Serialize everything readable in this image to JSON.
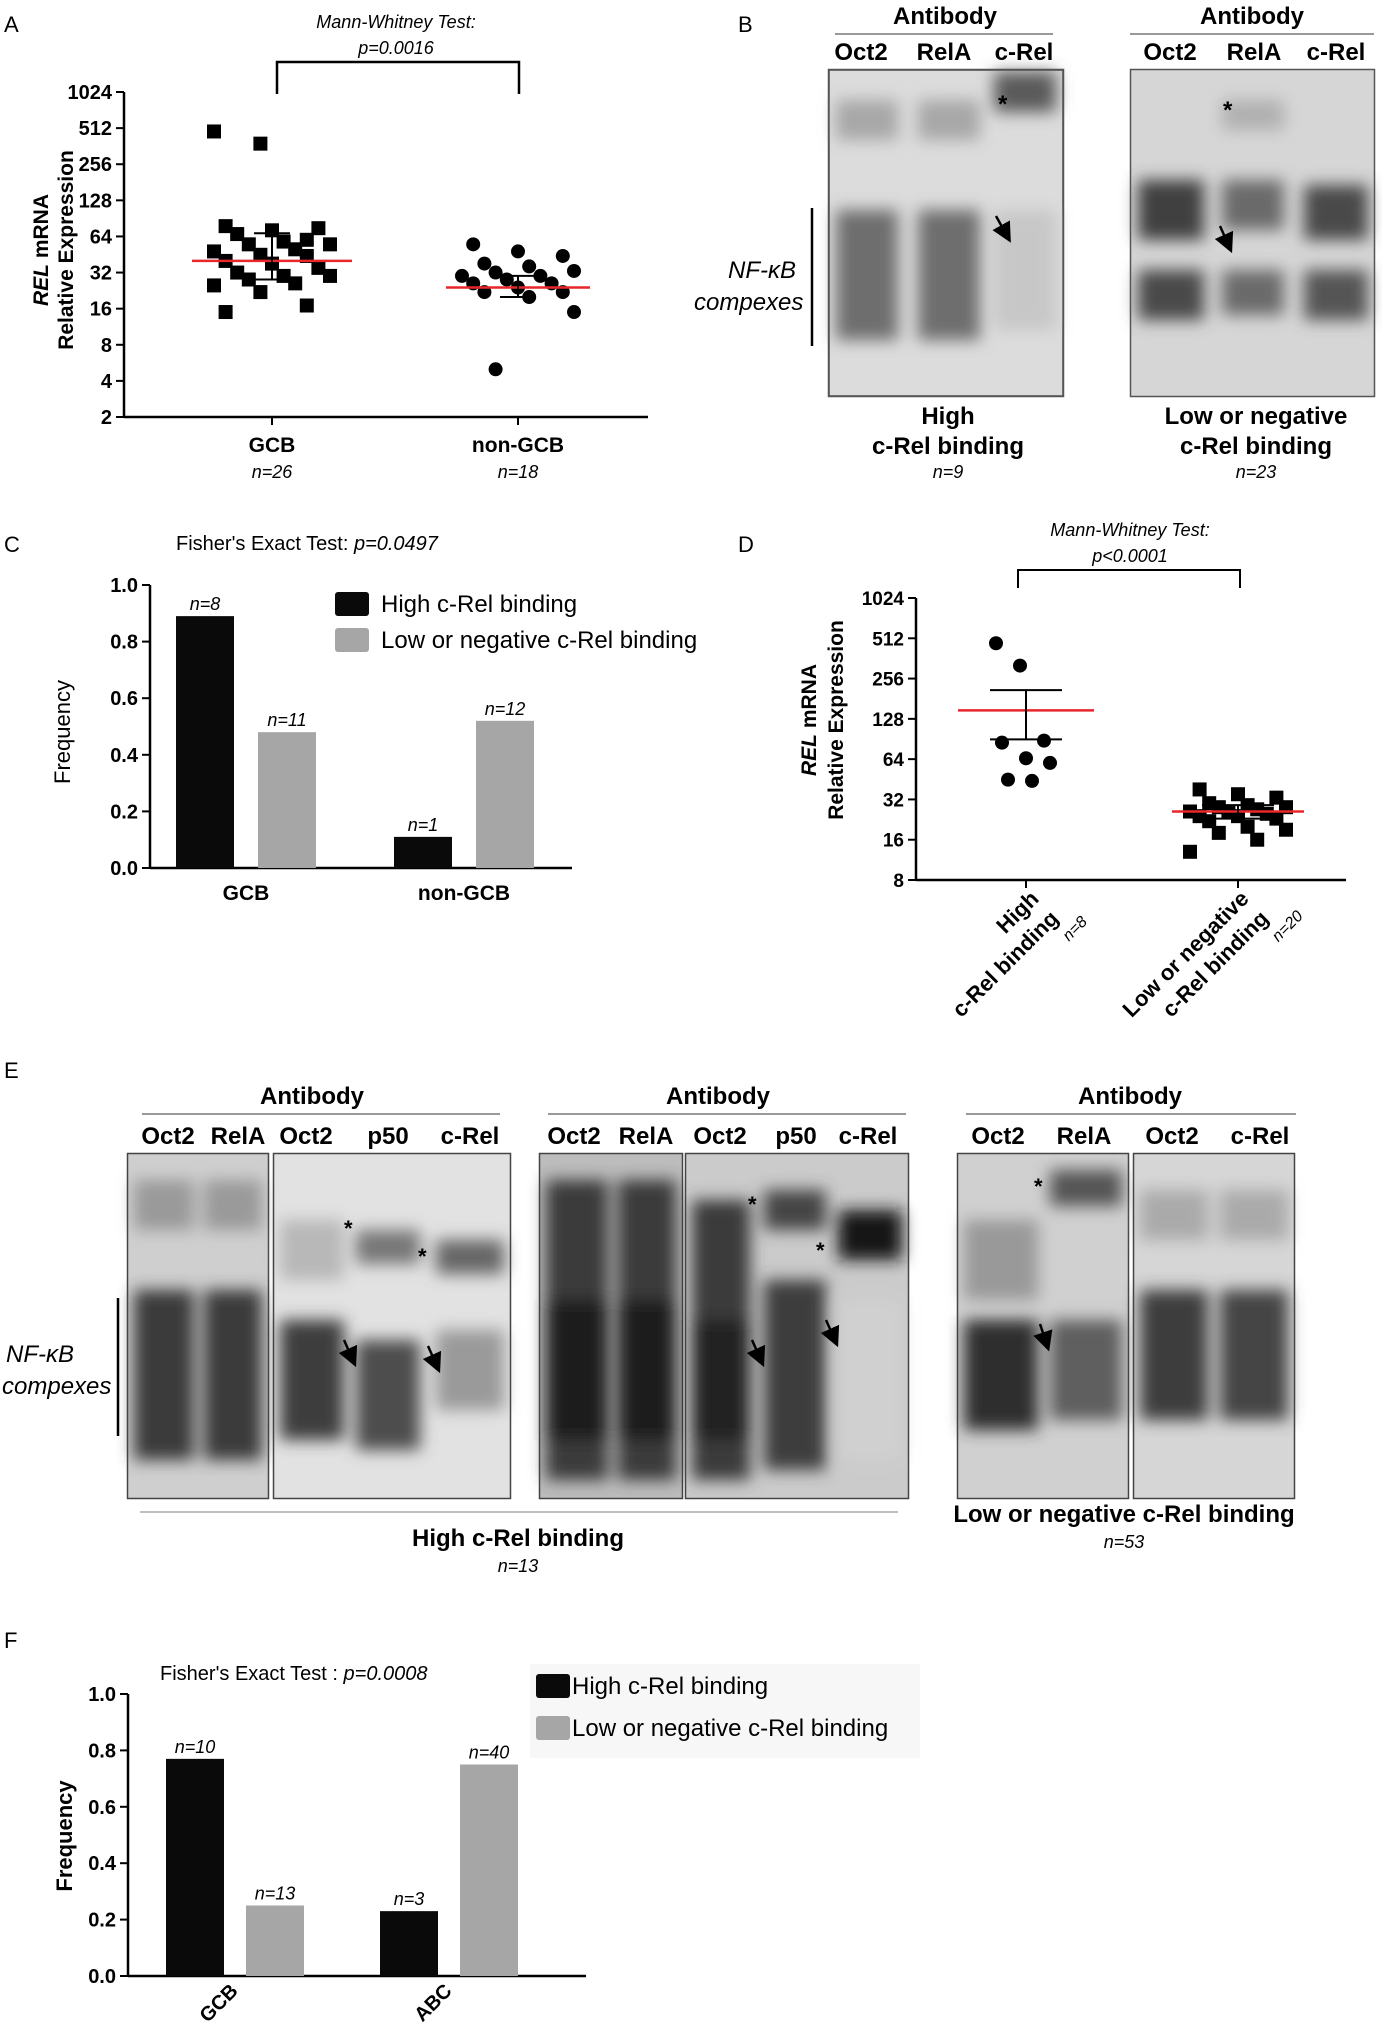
{
  "panels": {
    "A": {
      "letter": "A",
      "test_label": "Mann-Whitney Test:",
      "p_label": "p=0.0016",
      "ylabel_gene": "REL",
      "ylabel_rest": " mRNA",
      "ylabel_line2": "Relative Expression",
      "groups": [
        {
          "name": "GCB",
          "n": "n=26"
        },
        {
          "name": "non-GCB",
          "n": "n=18"
        }
      ]
    },
    "B": {
      "letter": "B",
      "antibody_label": "Antibody",
      "lanes": [
        "Oct2",
        "RelA",
        "c-Rel"
      ],
      "side_label_1": "NF-κB",
      "side_label_2": "compexes",
      "blots": [
        {
          "caption_1": "High",
          "caption_2": "c-Rel binding",
          "n": "n=9"
        },
        {
          "caption_1": "Low or negative",
          "caption_2": "c-Rel binding",
          "n": "n=23"
        }
      ],
      "star": "*"
    },
    "C": {
      "letter": "C",
      "test_prefix": "Fisher's Exact Test: ",
      "p_value": "p=0.0497",
      "ylabel": "Frequency"
    },
    "D": {
      "letter": "D",
      "test_label": "Mann-Whitney Test:",
      "p_label": "p<0.0001",
      "ylabel_gene": "REL",
      "ylabel_rest": " mRNA",
      "ylabel_line2": "Relative Expression",
      "groups": [
        {
          "line1": "High",
          "line2": "c-Rel binding",
          "n": "n=8"
        },
        {
          "line1": "Low or negative",
          "line2": "c-Rel binding",
          "n": "n=20"
        }
      ]
    },
    "E": {
      "letter": "E",
      "antibody_label": "Antibody",
      "side_label_1": "NF-κB",
      "side_label_2": "compexes",
      "star": "*",
      "groups": [
        {
          "lanes_a": [
            "Oct2",
            "RelA"
          ],
          "lanes_b": [
            "Oct2",
            "p50",
            "c-Rel"
          ]
        },
        {
          "lanes_a": [
            "Oct2",
            "RelA"
          ],
          "lanes_b": [
            "Oct2",
            "p50",
            "c-Rel"
          ]
        },
        {
          "lanes_a": [
            "Oct2",
            "RelA"
          ],
          "lanes_b": [
            "Oct2",
            "c-Rel"
          ]
        }
      ],
      "caption_high": "High c-Rel binding",
      "n_high": "n=13",
      "caption_low": "Low or negative c-Rel binding",
      "n_low": "n=53"
    },
    "F": {
      "letter": "F",
      "test_prefix": "Fisher's Exact Test : ",
      "p_value": "p=0.0008",
      "ylabel": "Frequency"
    }
  },
  "colors": {
    "high": "#0a0a0a",
    "low": "#a6a6a6",
    "median": "#e8262b"
  },
  "chart_data": [
    {
      "id": "A",
      "type": "scatter",
      "title": "",
      "xlabel": "",
      "ylabel": "REL mRNA Relative Expression",
      "log_base": 2,
      "ylim": [
        2,
        1024
      ],
      "yticks": [
        "2",
        "4",
        "8",
        "16",
        "32",
        "64",
        "128",
        "256",
        "512",
        "1024"
      ],
      "categories": [
        "GCB",
        "non-GCB"
      ],
      "series": [
        {
          "name": "GCB",
          "marker": "square",
          "median": 40,
          "err": [
            28,
            68
          ],
          "values": [
            480,
            380,
            60,
            78,
            72,
            75,
            67,
            58,
            55,
            55,
            50,
            48,
            45,
            44,
            40,
            38,
            35,
            32,
            30,
            30,
            28,
            26,
            25,
            22,
            17,
            15
          ]
        },
        {
          "name": "non-GCB",
          "marker": "circle",
          "median": 24,
          "err": [
            20,
            30
          ],
          "values": [
            55,
            48,
            44,
            38,
            36,
            33,
            32,
            30,
            30,
            28,
            26,
            26,
            24,
            22,
            22,
            20,
            15,
            5
          ]
        }
      ]
    },
    {
      "id": "C",
      "type": "bar",
      "title": "",
      "xlabel": "",
      "ylabel": "Frequency",
      "ylim": [
        0,
        1.0
      ],
      "yticks": [
        "0.0",
        "0.2",
        "0.4",
        "0.6",
        "0.8",
        "1.0"
      ],
      "categories": [
        "GCB",
        "non-GCB"
      ],
      "series": [
        {
          "name": "High c-Rel binding",
          "values": [
            0.89,
            0.11
          ],
          "labels": [
            "n=8",
            "n=1"
          ]
        },
        {
          "name": "Low or negative c-Rel binding",
          "values": [
            0.48,
            0.52
          ],
          "labels": [
            "n=11",
            "n=12"
          ]
        }
      ],
      "legend": "top-right"
    },
    {
      "id": "D",
      "type": "scatter",
      "title": "",
      "xlabel": "",
      "ylabel": "REL mRNA Relative Expression",
      "log_base": 2,
      "ylim": [
        8,
        1024
      ],
      "yticks": [
        "8",
        "16",
        "32",
        "64",
        "128",
        "256",
        "512",
        "1024"
      ],
      "categories": [
        "High c-Rel binding",
        "Low or negative c-Rel binding"
      ],
      "series": [
        {
          "name": "High c-Rel binding",
          "marker": "circle",
          "mean": 148,
          "err": [
            90,
            210
          ],
          "values": [
            470,
            320,
            88,
            85,
            65,
            60,
            45,
            44
          ]
        },
        {
          "name": "Low or negative c-Rel binding",
          "marker": "square",
          "mean": 26,
          "err": [
            23,
            29
          ],
          "values": [
            38,
            35,
            33,
            30,
            29,
            28,
            28,
            27,
            26,
            26,
            25,
            24,
            24,
            23,
            22,
            20,
            19,
            18,
            16,
            13
          ]
        }
      ]
    },
    {
      "id": "F",
      "type": "bar",
      "title": "",
      "xlabel": "",
      "ylabel": "Frequency",
      "ylim": [
        0,
        1.0
      ],
      "yticks": [
        "0.0",
        "0.2",
        "0.4",
        "0.6",
        "0.8",
        "1.0"
      ],
      "categories": [
        "GCB",
        "ABC"
      ],
      "series": [
        {
          "name": "High c-Rel binding",
          "values": [
            0.77,
            0.23
          ],
          "labels": [
            "n=10",
            "n=3"
          ]
        },
        {
          "name": "Low or negative c-Rel binding",
          "values": [
            0.25,
            0.75
          ],
          "labels": [
            "n=13",
            "n=40"
          ]
        }
      ],
      "legend": "top-right"
    }
  ]
}
